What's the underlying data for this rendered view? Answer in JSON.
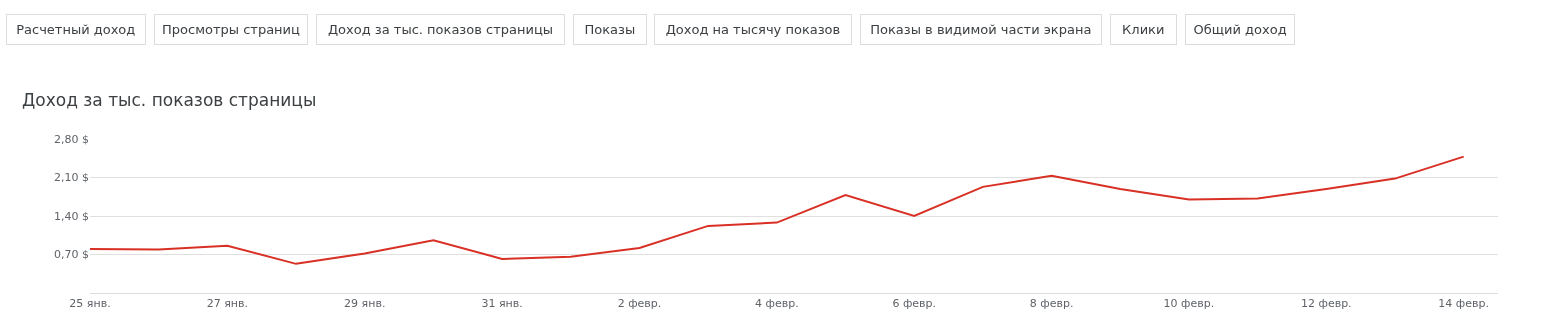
{
  "chart_data": {
    "type": "line",
    "title": "Доход за тыс. показов страницы",
    "annotations": [
      "Расчетный доход",
      "Просмотры страниц",
      "Доход за тыс. показов страницы",
      "Показы",
      "Доход на тысячу показов",
      "Показы в видимой части экрана",
      "Клики",
      "Общий доход"
    ],
    "x": [
      "--01-25",
      "--01-26",
      "--01-27",
      "--01-28",
      "--01-29",
      "--01-30",
      "--01-31",
      "--02-01",
      "--02-02",
      "--02-03",
      "--02-04",
      "--02-05",
      "--02-06",
      "--02-07",
      "--02-08",
      "--02-09",
      "--02-10",
      "--02-11",
      "--02-12",
      "--02-13",
      "--02-14"
    ],
    "series": [
      {
        "color": "#d93025",
        "values": [
          0.8,
          0.79,
          0.86,
          0.53,
          0.72,
          0.96,
          0.62,
          0.66,
          0.82,
          1.22,
          1.28,
          1.78,
          1.4,
          1.93,
          2.13,
          1.89,
          1.7,
          1.72,
          1.89,
          2.08,
          2.48
        ]
      }
    ],
    "xlim": [
      "--01-25",
      "--02-14T12:00"
    ],
    "xticks": [
      {
        "value": "--01-25",
        "label": "25 янв."
      },
      {
        "value": "--01-27",
        "label": "27 янв."
      },
      {
        "value": "--01-29",
        "label": "29 янв."
      },
      {
        "value": "--01-31",
        "label": "31 янв."
      },
      {
        "value": "--02-02",
        "label": "2 февр."
      },
      {
        "value": "--02-04",
        "label": "4 февр."
      },
      {
        "value": "--02-06",
        "label": "6 февр."
      },
      {
        "value": "--02-08",
        "label": "8 февр."
      },
      {
        "value": "--02-10",
        "label": "10 февр."
      },
      {
        "value": "--02-12",
        "label": "12 февр."
      },
      {
        "value": "--02-14",
        "label": "14 февр."
      }
    ],
    "ylim": [
      0,
      2.8
    ],
    "yticks": [
      {
        "value": 0,
        "label": null
      },
      {
        "value": 0.7,
        "label": "0,70 $"
      },
      {
        "value": 1.4,
        "label": "1,40 $"
      },
      {
        "value": 2.1,
        "label": "2,10 $"
      },
      {
        "value": 2.8,
        "label": "2,80 $"
      }
    ],
    "grid": "y",
    "marker": "none",
    "line_style": "solid"
  }
}
